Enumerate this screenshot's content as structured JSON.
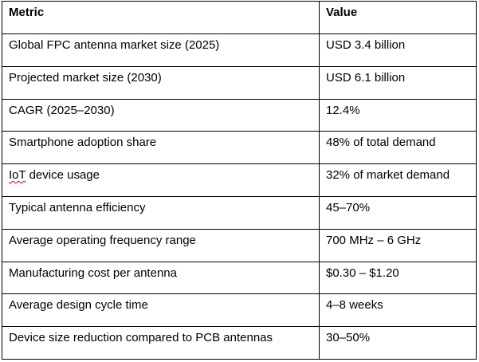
{
  "table": {
    "headers": [
      "Metric",
      "Value"
    ],
    "rows": [
      {
        "metric": "Global FPC antenna market size (2025)",
        "value": "USD 3.4 billion"
      },
      {
        "metric": "Projected market size (2030)",
        "value": "USD 6.1 billion"
      },
      {
        "metric": "CAGR (2025–2030)",
        "value": "12.4%"
      },
      {
        "metric": "Smartphone adoption share",
        "value": "48% of total demand"
      },
      {
        "metric_prefix": "IoT",
        "metric_suffix": " device usage",
        "value": "32% of market demand"
      },
      {
        "metric": "Typical antenna efficiency",
        "value": "45–70%"
      },
      {
        "metric": "Average operating frequency range",
        "value": "700 MHz – 6 GHz"
      },
      {
        "metric": "Manufacturing cost per antenna",
        "value": "$0.30 – $1.20"
      },
      {
        "metric": "Average design cycle time",
        "value": "4–8 weeks"
      },
      {
        "metric": "Device size reduction compared to PCB antennas",
        "value": "30–50%"
      }
    ]
  }
}
